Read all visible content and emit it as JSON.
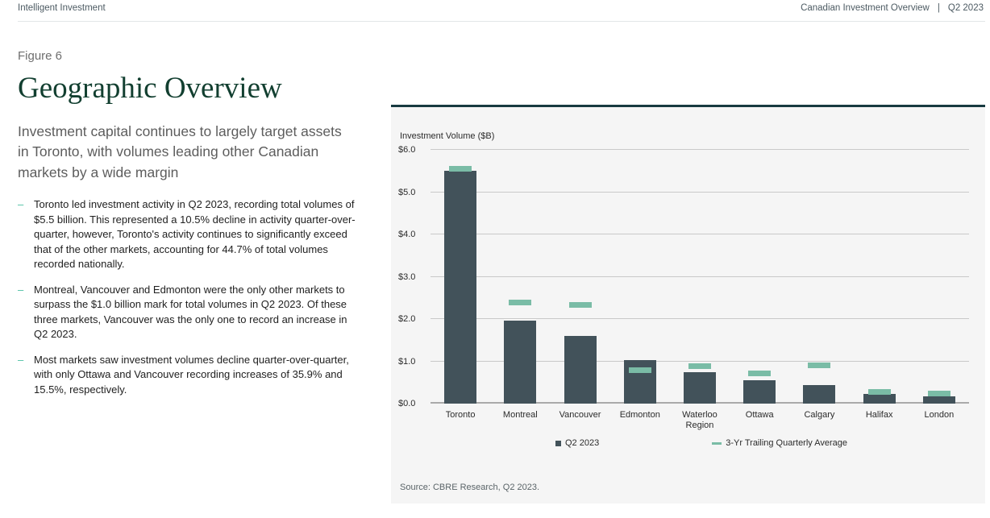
{
  "header": {
    "left": "Intelligent Investment",
    "right_title": "Canadian Investment Overview",
    "right_sep": "|",
    "right_period": "Q2 2023"
  },
  "left": {
    "figure_label": "Figure 6",
    "title": "Geographic Overview",
    "subtitle": "Investment capital continues to largely target assets in Toronto, with volumes leading other Canadian markets by a wide margin",
    "bullet_marker": "–",
    "bullets": [
      "Toronto led investment activity in Q2 2023, recording total volumes of $5.5 billion. This represented a 10.5% decline in activity quarter-over-quarter, however, Toronto's activity continues to significantly exceed that of the other markets, accounting for 44.7% of total volumes recorded nationally.",
      "Montreal, Vancouver and Edmonton were the only other markets to surpass the $1.0 billion mark for total volumes in Q2 2023. Of these three markets, Vancouver was the only one to record an increase in Q2 2023.",
      "Most markets saw investment volumes decline quarter-over-quarter, with only Ottawa and Vancouver recording increases of 35.9% and 15.5%, respectively."
    ]
  },
  "chart_data": {
    "type": "bar",
    "title": "Investment Volume ($B)",
    "categories": [
      "Toronto",
      "Montreal",
      "Vancouver",
      "Edmonton",
      "Waterloo Region",
      "Ottawa",
      "Calgary",
      "Halifax",
      "London"
    ],
    "series": [
      {
        "name": "Q2 2023",
        "type": "bar",
        "color": "#42525a",
        "values": [
          5.5,
          1.97,
          1.6,
          1.03,
          0.75,
          0.56,
          0.43,
          0.22,
          0.17
        ]
      },
      {
        "name": "3-Yr Trailing Quarterly Average",
        "type": "tick",
        "color": "#7abca6",
        "values": [
          5.55,
          2.38,
          2.32,
          0.78,
          0.88,
          0.7,
          0.9,
          0.27,
          0.23
        ]
      }
    ],
    "ylim": [
      0,
      6
    ],
    "yticks": [
      {
        "v": 0,
        "label": "$0.0"
      },
      {
        "v": 1,
        "label": "$1.0"
      },
      {
        "v": 2,
        "label": "$2.0"
      },
      {
        "v": 3,
        "label": "$3.0"
      },
      {
        "v": 4,
        "label": "$4.0"
      },
      {
        "v": 5,
        "label": "$5.0"
      },
      {
        "v": 6,
        "label": "$6.0"
      }
    ],
    "grid": true,
    "legend_position": "bottom"
  },
  "source": "Source: CBRE Research, Q2 2023.",
  "colors": {
    "title_green": "#123f30",
    "accent_teal": "#48bfa0",
    "bar_dark": "#42525a",
    "panel_bg": "#f5f5f5",
    "panel_border": "#173a40"
  }
}
